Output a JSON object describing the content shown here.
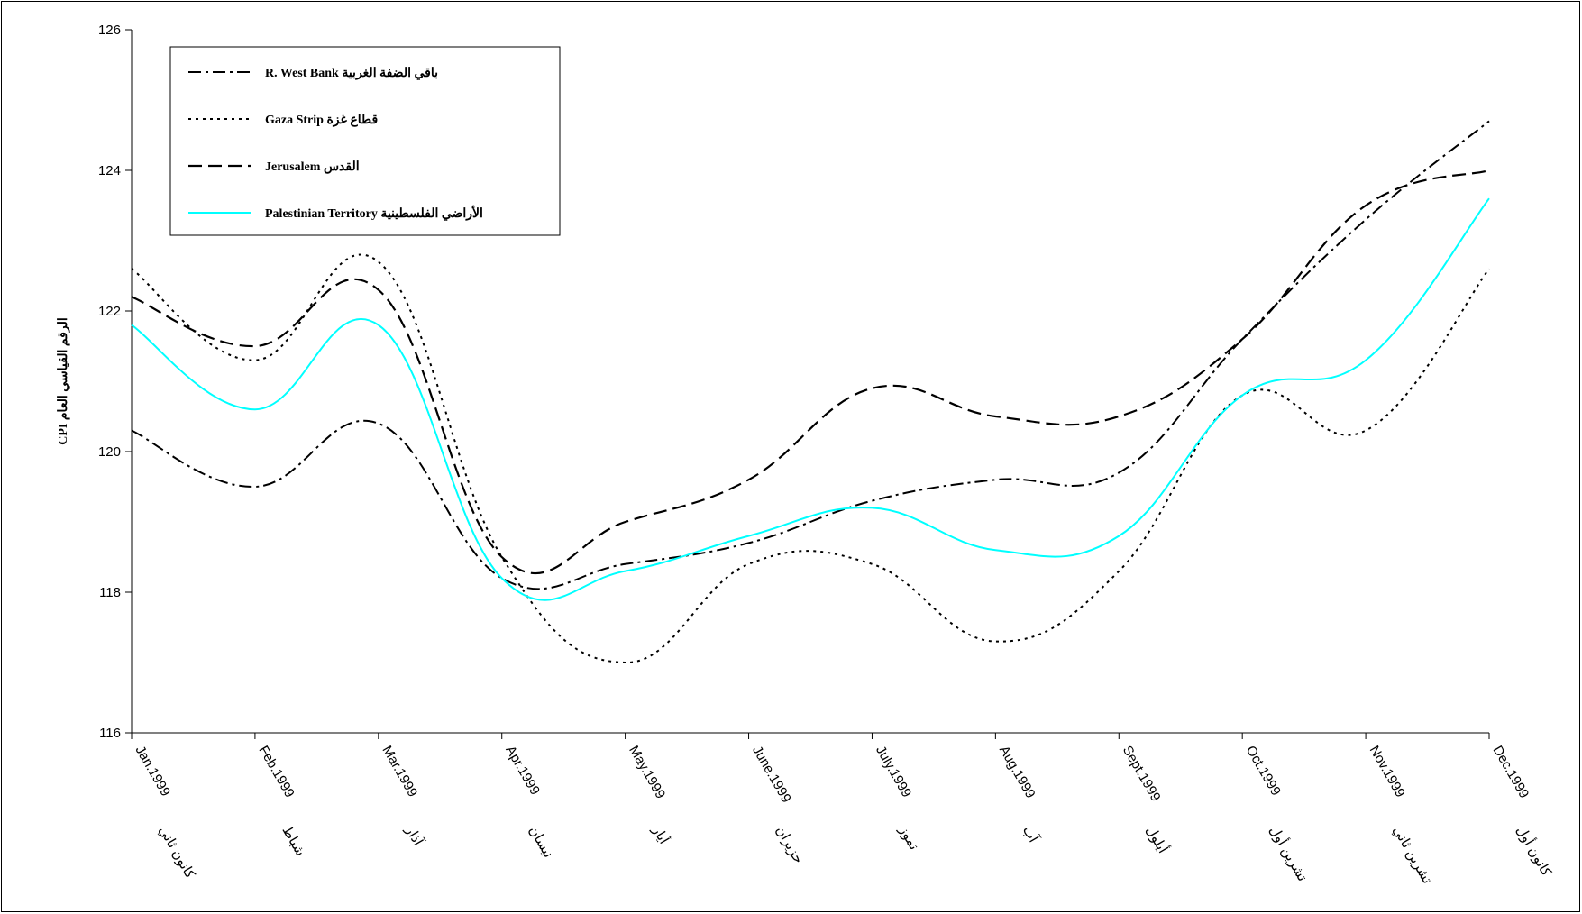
{
  "chart_data": {
    "type": "line",
    "title": "",
    "ylabel": "CPI الرقم القياسي العام",
    "xlabel": "",
    "ylim": [
      116,
      126
    ],
    "yticks": [
      "116",
      "118",
      "120",
      "122",
      "124",
      "126"
    ],
    "grid": false,
    "legend_position": "top-left",
    "categories": [
      {
        "en": "Jan.1999",
        "ar": "كانون ثاني"
      },
      {
        "en": "Feb.1999",
        "ar": "شباط"
      },
      {
        "en": "Mar.1999",
        "ar": "آذار"
      },
      {
        "en": "Apr.1999",
        "ar": "نيسان"
      },
      {
        "en": "May.1999",
        "ar": "أيار"
      },
      {
        "en": "June.1999",
        "ar": "حزيران"
      },
      {
        "en": "July.1999",
        "ar": "تموز"
      },
      {
        "en": "Aug.1999",
        "ar": "آب"
      },
      {
        "en": "Sept.1999",
        "ar": "أيلول"
      },
      {
        "en": "Oct.1999",
        "ar": "تشرين أول"
      },
      {
        "en": "Nov.1999",
        "ar": "تشرين ثاني"
      },
      {
        "en": "Dec.1999",
        "ar": "كانون أول"
      }
    ],
    "series": [
      {
        "name": "R. West Bank باقي الضفة الغربية",
        "style": "dashdot",
        "color": "#000000",
        "values": [
          120.3,
          119.5,
          120.4,
          118.2,
          118.4,
          118.7,
          119.3,
          119.6,
          119.7,
          121.6,
          123.3,
          124.7
        ]
      },
      {
        "name": "Gaza Strip قطاع غزة",
        "style": "dotted",
        "color": "#000000",
        "values": [
          122.6,
          121.3,
          122.7,
          118.5,
          117.0,
          118.4,
          118.4,
          117.3,
          118.3,
          120.8,
          120.3,
          122.6
        ]
      },
      {
        "name": "Jerusalem القدس",
        "style": "dashed",
        "color": "#000000",
        "values": [
          122.2,
          121.5,
          122.3,
          118.5,
          119.0,
          119.6,
          120.9,
          120.5,
          120.5,
          121.6,
          123.5,
          124.0
        ]
      },
      {
        "name": "Palestinian Territory الأراضي الفلسطينية",
        "style": "solid",
        "color": "#00FFFF",
        "values": [
          121.8,
          120.6,
          121.8,
          118.2,
          118.3,
          118.8,
          119.2,
          118.6,
          118.8,
          120.8,
          121.3,
          123.6
        ]
      }
    ]
  }
}
